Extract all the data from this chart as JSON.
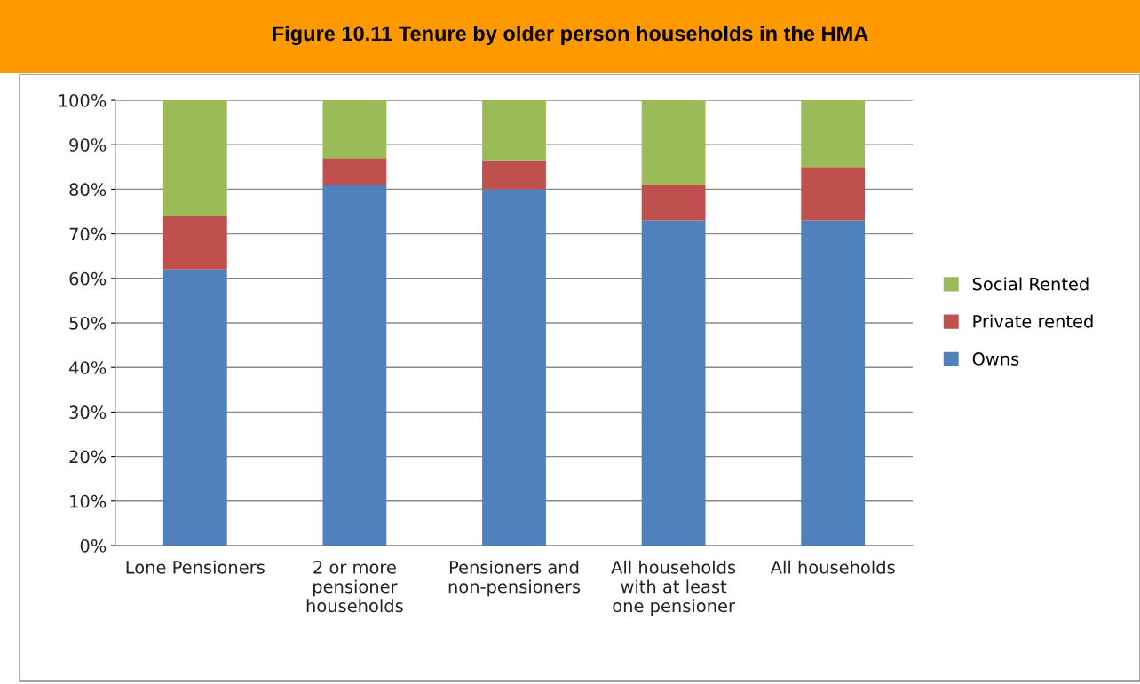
{
  "chart_data": {
    "type": "bar",
    "title": "Figure 10.11 Tenure by older person households in the HMA",
    "stacked": true,
    "categories": [
      "Lone Pensioners",
      "2 or more\npensioner\nhouseholds",
      "Pensioners and\nnon-pensioners",
      "All households\nwith at least\none pensioner",
      "All households"
    ],
    "series": [
      {
        "name": "Owns",
        "color": "#4f81bd",
        "values": [
          62,
          81,
          80,
          73,
          73
        ]
      },
      {
        "name": "Private rented",
        "color": "#c0504d",
        "values": [
          12,
          6,
          6.5,
          8,
          12
        ]
      },
      {
        "name": "Social Rented",
        "color": "#9bbb59",
        "values": [
          26,
          13,
          13.5,
          19,
          15
        ]
      }
    ],
    "ylim": [
      0,
      100
    ],
    "yticks": [
      {
        "value": 0,
        "label": "0%"
      },
      {
        "value": 10,
        "label": "10%"
      },
      {
        "value": 20,
        "label": "20%"
      },
      {
        "value": 30,
        "label": "30%"
      },
      {
        "value": 40,
        "label": "40%"
      },
      {
        "value": 50,
        "label": "50%"
      },
      {
        "value": 60,
        "label": "60%"
      },
      {
        "value": 70,
        "label": "70%"
      },
      {
        "value": 80,
        "label": "80%"
      },
      {
        "value": 90,
        "label": "90%"
      },
      {
        "value": 100,
        "label": "100%"
      }
    ],
    "grid": "y",
    "legend": "right"
  }
}
